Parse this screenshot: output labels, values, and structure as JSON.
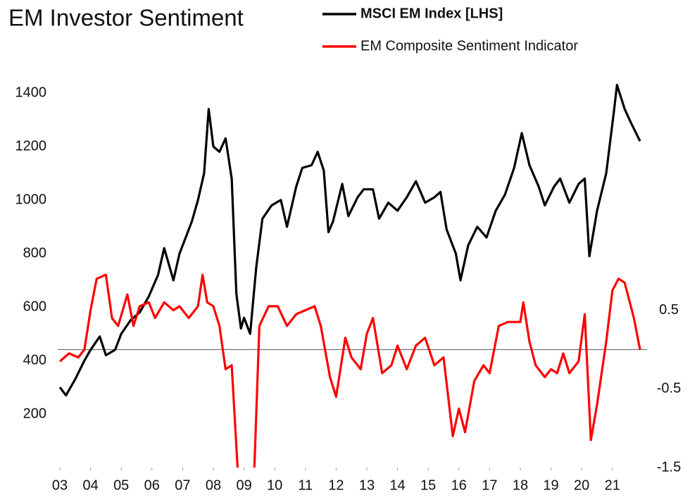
{
  "chart_data": {
    "type": "line",
    "title": "EM Investor Sentiment",
    "xlim": [
      2003,
      2021.9
    ],
    "xticks": [
      {
        "value": 2003,
        "label": "03"
      },
      {
        "value": 2004,
        "label": "04"
      },
      {
        "value": 2005,
        "label": "05"
      },
      {
        "value": 2006,
        "label": "06"
      },
      {
        "value": 2007,
        "label": "07"
      },
      {
        "value": 2008,
        "label": "08"
      },
      {
        "value": 2009,
        "label": "09"
      },
      {
        "value": 2010,
        "label": "10"
      },
      {
        "value": 2011,
        "label": "11"
      },
      {
        "value": 2012,
        "label": "12"
      },
      {
        "value": 2013,
        "label": "13"
      },
      {
        "value": 2014,
        "label": "14"
      },
      {
        "value": 2015,
        "label": "15"
      },
      {
        "value": 2016,
        "label": "16"
      },
      {
        "value": 2017,
        "label": "17"
      },
      {
        "value": 2018,
        "label": "18"
      },
      {
        "value": 2019,
        "label": "19"
      },
      {
        "value": 2020,
        "label": "20"
      },
      {
        "value": 2021,
        "label": "21"
      }
    ],
    "ylim": [
      0,
      1500
    ],
    "yticks": [
      200,
      400,
      600,
      800,
      1000,
      1200,
      1400
    ],
    "y2lim": [
      -1.5,
      3.6
    ],
    "y2ticks": [
      -1.5,
      -0.5,
      0.5
    ],
    "zero_line_y2": 0,
    "series": [
      {
        "name": "MSCI EM Index [LHS]",
        "color": "#000000",
        "axis": "y",
        "x": [
          2003.0,
          2003.2,
          2003.5,
          2003.8,
          2004.0,
          2004.3,
          2004.5,
          2004.8,
          2005.0,
          2005.3,
          2005.6,
          2005.9,
          2006.2,
          2006.4,
          2006.5,
          2006.7,
          2006.9,
          2007.1,
          2007.3,
          2007.5,
          2007.7,
          2007.85,
          2008.0,
          2008.2,
          2008.4,
          2008.6,
          2008.75,
          2008.9,
          2009.0,
          2009.2,
          2009.4,
          2009.6,
          2009.9,
          2010.2,
          2010.4,
          2010.7,
          2010.9,
          2011.2,
          2011.4,
          2011.6,
          2011.75,
          2011.9,
          2012.2,
          2012.4,
          2012.7,
          2012.9,
          2013.2,
          2013.4,
          2013.7,
          2014.0,
          2014.3,
          2014.6,
          2014.9,
          2015.2,
          2015.4,
          2015.6,
          2015.9,
          2016.05,
          2016.3,
          2016.6,
          2016.9,
          2017.2,
          2017.5,
          2017.8,
          2018.05,
          2018.3,
          2018.6,
          2018.8,
          2019.1,
          2019.3,
          2019.6,
          2019.9,
          2020.1,
          2020.25,
          2020.5,
          2020.8,
          2021.05,
          2021.15,
          2021.4,
          2021.6,
          2021.9
        ],
        "values": [
          300,
          270,
          330,
          400,
          440,
          490,
          420,
          440,
          500,
          550,
          580,
          640,
          720,
          820,
          780,
          700,
          800,
          860,
          920,
          1000,
          1100,
          1340,
          1200,
          1180,
          1230,
          1080,
          650,
          520,
          560,
          500,
          750,
          930,
          980,
          1000,
          900,
          1050,
          1120,
          1130,
          1180,
          1110,
          880,
          920,
          1060,
          940,
          1010,
          1040,
          1040,
          930,
          990,
          960,
          1010,
          1070,
          990,
          1010,
          1030,
          890,
          800,
          700,
          830,
          900,
          860,
          960,
          1020,
          1120,
          1250,
          1130,
          1050,
          980,
          1050,
          1080,
          990,
          1060,
          1080,
          790,
          960,
          1100,
          1330,
          1430,
          1340,
          1290,
          1220
        ]
      },
      {
        "name": "EM Composite Sentiment Indicator",
        "color": "#ff0000",
        "axis": "y2",
        "x": [
          2003.0,
          2003.3,
          2003.6,
          2003.8,
          2004.0,
          2004.2,
          2004.5,
          2004.7,
          2004.9,
          2005.2,
          2005.4,
          2005.6,
          2005.9,
          2006.1,
          2006.4,
          2006.7,
          2006.9,
          2007.2,
          2007.5,
          2007.65,
          2007.8,
          2008.0,
          2008.2,
          2008.4,
          2008.6,
          2008.85,
          2009.3,
          2009.5,
          2009.8,
          2010.1,
          2010.4,
          2010.7,
          2011.0,
          2011.3,
          2011.5,
          2011.8,
          2012.0,
          2012.3,
          2012.5,
          2012.8,
          2013.0,
          2013.2,
          2013.5,
          2013.8,
          2014.0,
          2014.3,
          2014.6,
          2014.9,
          2015.2,
          2015.5,
          2015.8,
          2016.0,
          2016.2,
          2016.5,
          2016.8,
          2017.0,
          2017.3,
          2017.6,
          2018.0,
          2018.1,
          2018.3,
          2018.5,
          2018.8,
          2019.0,
          2019.2,
          2019.4,
          2019.6,
          2019.9,
          2020.1,
          2020.3,
          2020.5,
          2020.8,
          2021.0,
          2021.2,
          2021.4,
          2021.7,
          2021.9
        ],
        "values": [
          -0.15,
          -0.05,
          -0.1,
          0.0,
          0.5,
          0.9,
          0.95,
          0.4,
          0.3,
          0.7,
          0.3,
          0.55,
          0.6,
          0.4,
          0.6,
          0.5,
          0.55,
          0.4,
          0.55,
          0.95,
          0.6,
          0.55,
          0.3,
          -0.25,
          -0.2,
          -1.9,
          -1.9,
          0.3,
          0.55,
          0.55,
          0.3,
          0.45,
          0.5,
          0.55,
          0.3,
          -0.35,
          -0.6,
          0.15,
          -0.1,
          -0.25,
          0.2,
          0.4,
          -0.3,
          -0.2,
          0.05,
          -0.25,
          0.05,
          0.15,
          -0.2,
          -0.1,
          -1.1,
          -0.75,
          -1.05,
          -0.4,
          -0.2,
          -0.3,
          0.3,
          0.35,
          0.35,
          0.6,
          0.1,
          -0.2,
          -0.35,
          -0.25,
          -0.3,
          -0.05,
          -0.3,
          -0.15,
          0.45,
          -1.15,
          -0.7,
          0.1,
          0.75,
          0.9,
          0.85,
          0.4,
          0.0
        ]
      }
    ]
  }
}
